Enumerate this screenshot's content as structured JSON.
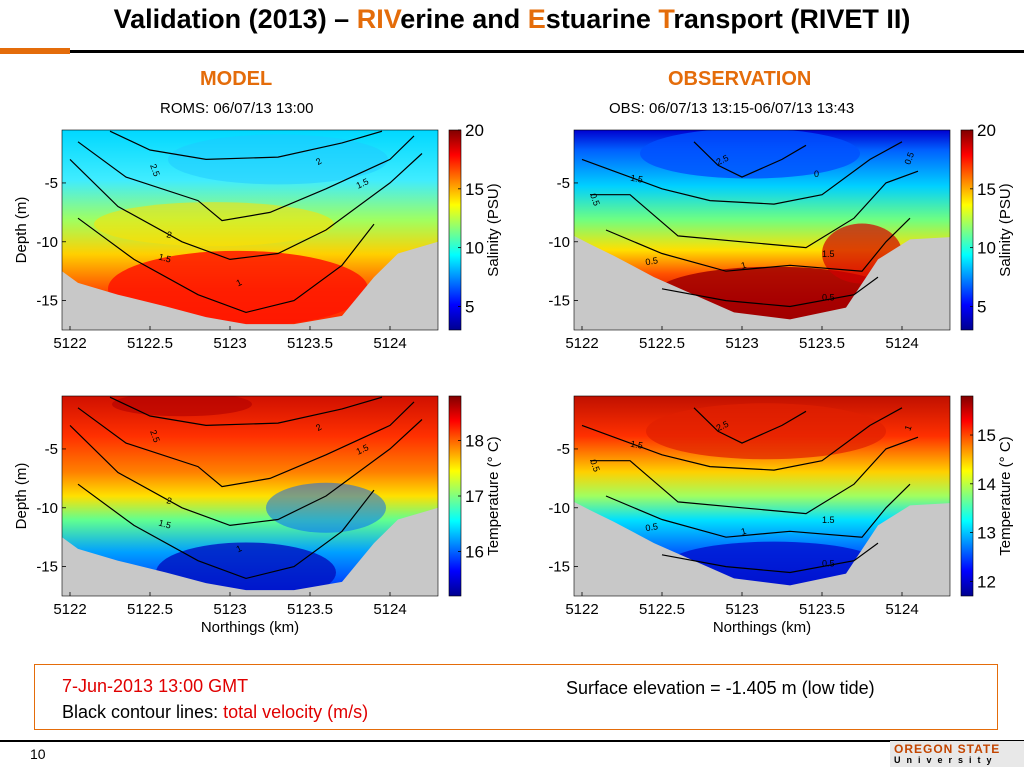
{
  "slide": {
    "title_parts": [
      "Validation (2013) – ",
      "RIV",
      "erine and ",
      "E",
      "stuarine ",
      "T",
      "ransport (RIVET II)"
    ],
    "col_left": "MODEL",
    "col_right": "OBSERVATION",
    "note_line1": "7-Jun-2013 13:00 GMT",
    "note_line2_prefix": "Black contour lines: ",
    "note_line2_highlight": "total velocity (m/s)",
    "surface_elevation": "Surface elevation  = -1.405 m (low tide)",
    "page_number": "10",
    "logo_line1": "OREGON STATE",
    "logo_line2": "University"
  },
  "colors": {
    "accent_orange": "#e46c0a",
    "highlight_red": "#e00000",
    "land_gray": "#c8c8c8",
    "colormap": [
      "#00008f",
      "#0000ff",
      "#0080ff",
      "#00ffff",
      "#80ff80",
      "#ffff00",
      "#ff8000",
      "#ff0000",
      "#800000"
    ]
  },
  "chart_data": [
    {
      "id": "model-salinity",
      "type": "heatmap",
      "title": "ROMS: 06/07/13 13:00",
      "xlabel": "",
      "ylabel": "Depth (m)",
      "x_ticks": [
        "5122",
        "5122.5",
        "5123",
        "5123.5",
        "5124"
      ],
      "y_ticks": [
        "-5",
        "-10",
        "-15"
      ],
      "colorbar_label": "Salinity (PSU)",
      "colorbar_ticks": [
        "20",
        "15",
        "10",
        "5"
      ],
      "colorbar_range": [
        3,
        20
      ],
      "xlim": [
        5121.95,
        5124.3
      ],
      "ylim": [
        -17.5,
        -0.5
      ],
      "contour_labels": [
        "2.5",
        "2",
        "1.5",
        "2",
        "1.5",
        "1"
      ]
    },
    {
      "id": "obs-salinity",
      "type": "heatmap",
      "title": "OBS: 06/07/13 13:15-06/07/13 13:43",
      "xlabel": "",
      "ylabel": "",
      "x_ticks": [
        "5122",
        "5122.5",
        "5123",
        "5123.5",
        "5124"
      ],
      "y_ticks": [
        "-5",
        "-10",
        "-15"
      ],
      "colorbar_label": "Salinity (PSU)",
      "colorbar_ticks": [
        "20",
        "15",
        "10",
        "5"
      ],
      "colorbar_range": [
        3,
        20
      ],
      "xlim": [
        5121.95,
        5124.3
      ],
      "ylim": [
        -17.5,
        -0.5
      ],
      "contour_labels": [
        "1.5",
        "2.5",
        "0",
        "0.5",
        "1.5",
        "1",
        "0.5",
        "0.5",
        "0.5"
      ]
    },
    {
      "id": "model-temperature",
      "type": "heatmap",
      "title": "",
      "xlabel": "Northings (km)",
      "ylabel": "Depth (m)",
      "x_ticks": [
        "5122",
        "5122.5",
        "5123",
        "5123.5",
        "5124"
      ],
      "y_ticks": [
        "-5",
        "-10",
        "-15"
      ],
      "colorbar_label": "Temperature (° C)",
      "colorbar_ticks": [
        "18",
        "17",
        "16"
      ],
      "colorbar_range": [
        15.2,
        18.8
      ],
      "xlim": [
        5121.95,
        5124.3
      ],
      "ylim": [
        -17.5,
        -0.5
      ],
      "contour_labels": [
        "2.5",
        "2",
        "1.5",
        "2",
        "1.5",
        "1"
      ]
    },
    {
      "id": "obs-temperature",
      "type": "heatmap",
      "title": "",
      "xlabel": "Northings (km)",
      "ylabel": "",
      "x_ticks": [
        "5122",
        "5122.5",
        "5123",
        "5123.5",
        "5124"
      ],
      "y_ticks": [
        "-5",
        "-10",
        "-15"
      ],
      "colorbar_label": "Temperature (° C)",
      "colorbar_ticks": [
        "15",
        "14",
        "13",
        "12"
      ],
      "colorbar_range": [
        11.7,
        15.8
      ],
      "xlim": [
        5121.95,
        5124.3
      ],
      "ylim": [
        -17.5,
        -0.5
      ],
      "contour_labels": [
        "1.5",
        "2.5",
        "0.5",
        "1.5",
        "1",
        "0.5",
        "0.5",
        "1"
      ]
    }
  ]
}
